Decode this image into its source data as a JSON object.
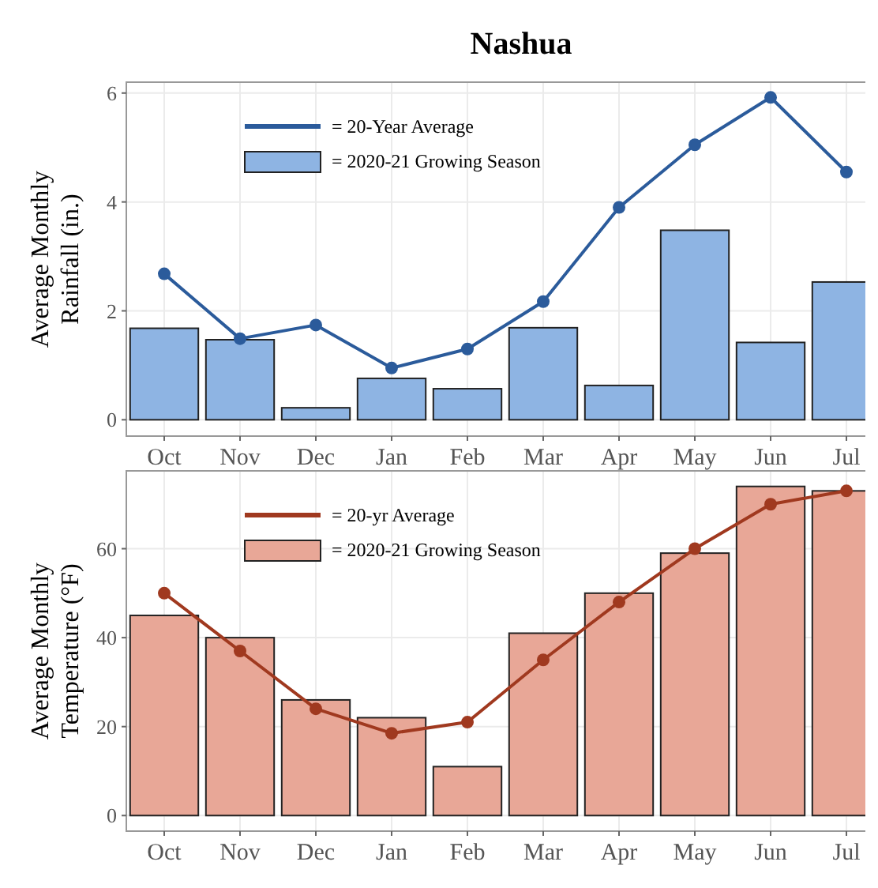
{
  "chart_data": [
    {
      "type": "bar",
      "title": "Nashua",
      "ylabel": "Average Monthly\nRainfall (in.)",
      "categories": [
        "Oct",
        "Nov",
        "Dec",
        "Jan",
        "Feb",
        "Mar",
        "Apr",
        "May",
        "Jun",
        "Jul"
      ],
      "ylim": [
        -0.3,
        6.2
      ],
      "yticks": [
        0,
        2,
        4,
        6
      ],
      "grid": true,
      "legend": "top left",
      "marker": "circle",
      "series": [
        {
          "name": "= 2020-21 Growing Season",
          "color": "#8eb4e3",
          "values": [
            1.68,
            1.47,
            0.22,
            0.76,
            0.57,
            1.69,
            0.63,
            3.48,
            1.42,
            2.53
          ]
        },
        {
          "name": "= 20-Year Average",
          "type": "line",
          "color": "#2b5b9b",
          "values": [
            2.68,
            1.49,
            1.74,
            0.95,
            1.3,
            2.17,
            3.9,
            5.05,
            5.92,
            4.55
          ]
        }
      ]
    },
    {
      "type": "bar",
      "ylabel": "Average Monthly\nTemperature (°F)",
      "categories": [
        "Oct",
        "Nov",
        "Dec",
        "Jan",
        "Feb",
        "Mar",
        "Apr",
        "May",
        "Jun",
        "Jul"
      ],
      "ylim": [
        -3.5,
        77.5
      ],
      "yticks": [
        0,
        20,
        40,
        60
      ],
      "grid": true,
      "legend": "top left",
      "marker": "circle",
      "series": [
        {
          "name": "= 2020-21 Growing Season",
          "color": "#e8a797",
          "values": [
            45,
            40,
            26,
            22,
            11,
            41,
            50,
            59,
            74,
            73
          ]
        },
        {
          "name": "= 20-yr Average",
          "type": "line",
          "color": "#a0391f",
          "values": [
            50,
            37,
            24,
            18.5,
            21,
            35,
            48,
            60,
            70,
            73
          ]
        }
      ]
    }
  ]
}
